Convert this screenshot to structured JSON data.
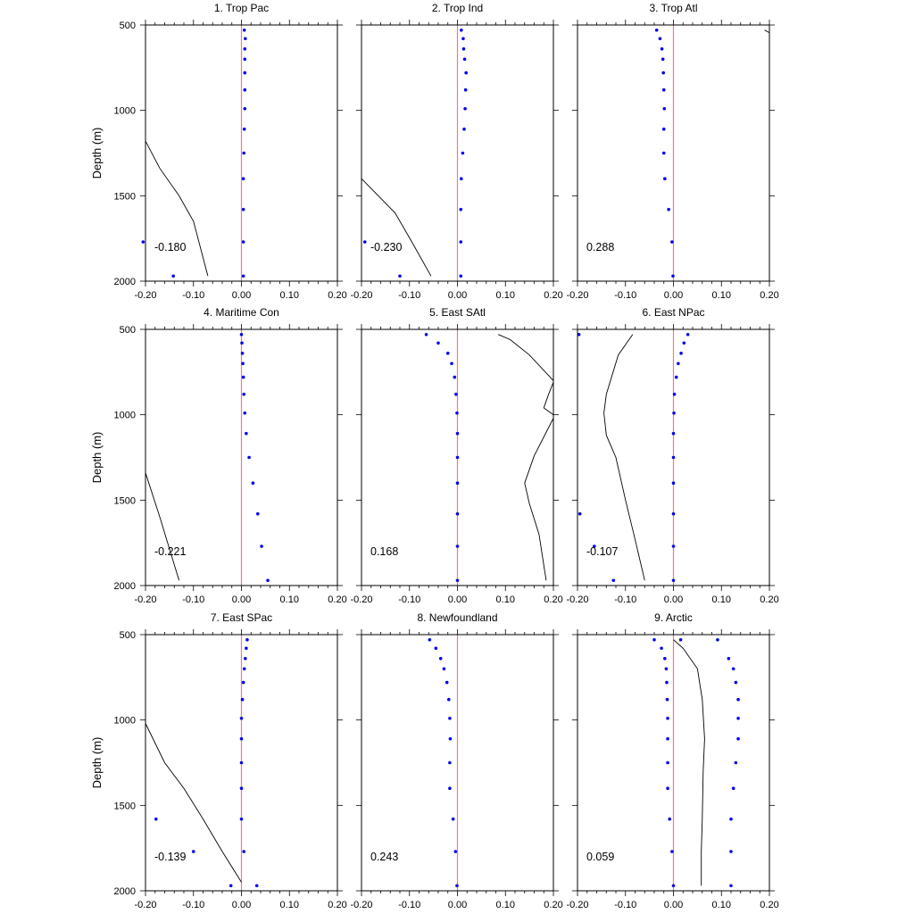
{
  "colors": {
    "zero_line": "#ff7777",
    "dots": "#0000ee",
    "line": "#000000",
    "axes": "#000000"
  },
  "chart_data": [
    {
      "type": "scatter",
      "title": "1. Trop Pac",
      "ylabel": "Depth (m)",
      "xlim": [
        -0.2,
        0.2
      ],
      "ylim": [
        500,
        2000
      ],
      "y_reversed": true,
      "xticks": [
        "-0.20",
        "-0.10",
        "0.00",
        "0.10",
        "0.20"
      ],
      "yticks": [
        "500",
        "1000",
        "1500",
        "2000"
      ],
      "annotation": "-0.180",
      "dots": [
        [
          0.006,
          530
        ],
        [
          0.008,
          580
        ],
        [
          0.007,
          640
        ],
        [
          0.007,
          700
        ],
        [
          0.007,
          780
        ],
        [
          0.007,
          880
        ],
        [
          0.007,
          990
        ],
        [
          0.006,
          1110
        ],
        [
          0.005,
          1250
        ],
        [
          0.004,
          1400
        ],
        [
          0.004,
          1580
        ],
        [
          0.004,
          1770
        ],
        [
          0.004,
          1970
        ],
        [
          -0.205,
          1770
        ],
        [
          -0.142,
          1970
        ]
      ],
      "line": [
        [
          -0.2,
          1180
        ],
        [
          -0.17,
          1340
        ],
        [
          -0.13,
          1500
        ],
        [
          -0.1,
          1650
        ],
        [
          -0.07,
          1970
        ]
      ]
    },
    {
      "type": "scatter",
      "title": "2. Trop Ind",
      "ylabel": "",
      "xlim": [
        -0.2,
        0.2
      ],
      "ylim": [
        500,
        2000
      ],
      "y_reversed": true,
      "xticks": [
        "-0.20",
        "-0.10",
        "0.00",
        "0.10",
        "0.20"
      ],
      "yticks": [],
      "annotation": "-0.230",
      "dots": [
        [
          0.008,
          530
        ],
        [
          0.012,
          580
        ],
        [
          0.013,
          640
        ],
        [
          0.015,
          700
        ],
        [
          0.018,
          780
        ],
        [
          0.017,
          880
        ],
        [
          0.016,
          990
        ],
        [
          0.014,
          1110
        ],
        [
          0.011,
          1250
        ],
        [
          0.008,
          1400
        ],
        [
          0.007,
          1580
        ],
        [
          0.007,
          1770
        ],
        [
          0.007,
          1970
        ],
        [
          -0.193,
          1770
        ],
        [
          -0.12,
          1970
        ]
      ],
      "line": [
        [
          -0.2,
          1400
        ],
        [
          -0.165,
          1500
        ],
        [
          -0.13,
          1600
        ],
        [
          -0.095,
          1770
        ],
        [
          -0.055,
          1970
        ]
      ]
    },
    {
      "type": "scatter",
      "title": "3. Trop Atl",
      "ylabel": "",
      "xlim": [
        -0.2,
        0.2
      ],
      "ylim": [
        500,
        2000
      ],
      "y_reversed": true,
      "xticks": [
        "-0.20",
        "-0.10",
        "0.00",
        "0.10",
        "0.20"
      ],
      "yticks": [],
      "annotation": "0.288",
      "dots": [
        [
          -0.035,
          530
        ],
        [
          -0.028,
          580
        ],
        [
          -0.024,
          640
        ],
        [
          -0.022,
          700
        ],
        [
          -0.021,
          780
        ],
        [
          -0.02,
          880
        ],
        [
          -0.019,
          990
        ],
        [
          -0.02,
          1110
        ],
        [
          -0.02,
          1250
        ],
        [
          -0.018,
          1400
        ],
        [
          -0.01,
          1580
        ],
        [
          -0.003,
          1770
        ],
        [
          -0.001,
          1970
        ]
      ],
      "line": [
        [
          0.19,
          530
        ],
        [
          0.2,
          545
        ]
      ]
    },
    {
      "type": "scatter",
      "title": "4. Maritime Con",
      "ylabel": "Depth (m)",
      "xlim": [
        -0.2,
        0.2
      ],
      "ylim": [
        500,
        2000
      ],
      "y_reversed": true,
      "xticks": [
        "-0.20",
        "-0.10",
        "0.00",
        "0.10",
        "0.20"
      ],
      "yticks": [
        "500",
        "1000",
        "1500",
        "2000"
      ],
      "annotation": "-0.221",
      "dots": [
        [
          0.0,
          530
        ],
        [
          0.001,
          580
        ],
        [
          0.002,
          640
        ],
        [
          0.003,
          700
        ],
        [
          0.004,
          780
        ],
        [
          0.005,
          880
        ],
        [
          0.007,
          990
        ],
        [
          0.01,
          1110
        ],
        [
          0.016,
          1250
        ],
        [
          0.024,
          1400
        ],
        [
          0.034,
          1580
        ],
        [
          0.042,
          1770
        ],
        [
          0.055,
          1970
        ]
      ],
      "line": [
        [
          -0.2,
          1340
        ],
        [
          -0.17,
          1600
        ],
        [
          -0.13,
          1970
        ]
      ]
    },
    {
      "type": "scatter",
      "title": "5. East SAtl",
      "ylabel": "",
      "xlim": [
        -0.2,
        0.2
      ],
      "ylim": [
        500,
        2000
      ],
      "y_reversed": true,
      "xticks": [
        "-0.20",
        "-0.10",
        "0.00",
        "0.10",
        "0.20"
      ],
      "yticks": [],
      "annotation": "0.168",
      "dots": [
        [
          -0.065,
          530
        ],
        [
          -0.04,
          580
        ],
        [
          -0.02,
          640
        ],
        [
          -0.012,
          700
        ],
        [
          -0.006,
          780
        ],
        [
          -0.003,
          880
        ],
        [
          -0.001,
          990
        ],
        [
          0.0,
          1110
        ],
        [
          0.0,
          1250
        ],
        [
          0.0,
          1400
        ],
        [
          0.0,
          1580
        ],
        [
          0.0,
          1770
        ],
        [
          0.0,
          1970
        ]
      ],
      "line": [
        [
          0.085,
          530
        ],
        [
          0.11,
          560
        ],
        [
          0.15,
          650
        ],
        [
          0.2,
          800
        ],
        [
          0.2,
          810
        ],
        [
          0.19,
          880
        ],
        [
          0.18,
          960
        ],
        [
          0.2,
          1000
        ],
        [
          0.2,
          1020
        ],
        [
          0.16,
          1240
        ],
        [
          0.14,
          1400
        ],
        [
          0.15,
          1520
        ],
        [
          0.17,
          1700
        ],
        [
          0.185,
          1970
        ]
      ]
    },
    {
      "type": "scatter",
      "title": "6. East NPac",
      "ylabel": "",
      "xlim": [
        -0.2,
        0.2
      ],
      "ylim": [
        500,
        2000
      ],
      "y_reversed": true,
      "xticks": [
        "-0.20",
        "-0.10",
        "0.00",
        "0.10",
        "0.20"
      ],
      "yticks": [],
      "annotation": "-0.107",
      "dots": [
        [
          0.03,
          530
        ],
        [
          0.022,
          580
        ],
        [
          0.016,
          640
        ],
        [
          0.01,
          700
        ],
        [
          0.006,
          780
        ],
        [
          0.002,
          880
        ],
        [
          0.001,
          990
        ],
        [
          0.0,
          1110
        ],
        [
          0.0,
          1250
        ],
        [
          0.0,
          1400
        ],
        [
          0.0,
          1580
        ],
        [
          0.0,
          1770
        ],
        [
          0.0,
          1970
        ],
        [
          -0.197,
          530
        ],
        [
          -0.195,
          1580
        ],
        [
          -0.165,
          1770
        ],
        [
          -0.125,
          1970
        ]
      ],
      "line": [
        [
          -0.085,
          530
        ],
        [
          -0.115,
          650
        ],
        [
          -0.14,
          880
        ],
        [
          -0.145,
          990
        ],
        [
          -0.14,
          1120
        ],
        [
          -0.12,
          1250
        ],
        [
          -0.1,
          1500
        ],
        [
          -0.08,
          1730
        ],
        [
          -0.06,
          1970
        ]
      ]
    },
    {
      "type": "scatter",
      "title": "7. East SPac",
      "ylabel": "Depth (m)",
      "xlim": [
        -0.2,
        0.2
      ],
      "ylim": [
        500,
        2000
      ],
      "y_reversed": true,
      "xticks": [
        "-0.20",
        "-0.10",
        "0.00",
        "0.10",
        "0.20"
      ],
      "yticks": [
        "500",
        "1000",
        "1500",
        "2000"
      ],
      "annotation": "-0.139",
      "dots": [
        [
          0.012,
          530
        ],
        [
          0.01,
          580
        ],
        [
          0.008,
          640
        ],
        [
          0.006,
          700
        ],
        [
          0.004,
          780
        ],
        [
          0.002,
          880
        ],
        [
          0.0,
          990
        ],
        [
          0.0,
          1110
        ],
        [
          0.0,
          1250
        ],
        [
          0.0,
          1400
        ],
        [
          0.0,
          1580
        ],
        [
          0.005,
          1770
        ],
        [
          -0.022,
          1970
        ],
        [
          0.032,
          1970
        ],
        [
          -0.178,
          1580
        ],
        [
          -0.1,
          1770
        ]
      ],
      "line": [
        [
          -0.2,
          1020
        ],
        [
          -0.16,
          1250
        ],
        [
          -0.12,
          1400
        ],
        [
          -0.08,
          1580
        ],
        [
          -0.04,
          1770
        ],
        [
          0.0,
          1950
        ]
      ]
    },
    {
      "type": "scatter",
      "title": "8. Newfoundland",
      "ylabel": "",
      "xlim": [
        -0.2,
        0.2
      ],
      "ylim": [
        500,
        2000
      ],
      "y_reversed": true,
      "xticks": [
        "-0.20",
        "-0.10",
        "0.00",
        "0.10",
        "0.20"
      ],
      "yticks": [],
      "annotation": "0.243",
      "dots": [
        [
          -0.058,
          530
        ],
        [
          -0.045,
          580
        ],
        [
          -0.035,
          640
        ],
        [
          -0.028,
          700
        ],
        [
          -0.022,
          780
        ],
        [
          -0.018,
          880
        ],
        [
          -0.016,
          990
        ],
        [
          -0.015,
          1110
        ],
        [
          -0.016,
          1250
        ],
        [
          -0.016,
          1400
        ],
        [
          -0.009,
          1580
        ],
        [
          -0.004,
          1770
        ],
        [
          -0.001,
          1970
        ]
      ],
      "line": []
    },
    {
      "type": "scatter",
      "title": "9. Arctic",
      "ylabel": "",
      "xlim": [
        -0.2,
        0.2
      ],
      "ylim": [
        500,
        2000
      ],
      "y_reversed": true,
      "xticks": [
        "-0.20",
        "-0.10",
        "0.00",
        "0.10",
        "0.20"
      ],
      "yticks": [],
      "annotation": "0.059",
      "dots": [
        [
          -0.04,
          530
        ],
        [
          -0.025,
          580
        ],
        [
          -0.018,
          640
        ],
        [
          -0.015,
          700
        ],
        [
          -0.014,
          780
        ],
        [
          -0.013,
          880
        ],
        [
          -0.012,
          990
        ],
        [
          -0.012,
          1110
        ],
        [
          -0.012,
          1250
        ],
        [
          -0.012,
          1400
        ],
        [
          -0.008,
          1580
        ],
        [
          -0.003,
          1770
        ],
        [
          0.0,
          1970
        ],
        [
          0.015,
          530
        ],
        [
          0.092,
          530
        ],
        [
          0.115,
          640
        ],
        [
          0.125,
          700
        ],
        [
          0.13,
          780
        ],
        [
          0.135,
          880
        ],
        [
          0.135,
          990
        ],
        [
          0.135,
          1110
        ],
        [
          0.13,
          1250
        ],
        [
          0.125,
          1400
        ],
        [
          0.12,
          1580
        ],
        [
          0.12,
          1770
        ],
        [
          0.12,
          1970
        ]
      ],
      "line": [
        [
          0.0,
          530
        ],
        [
          0.02,
          580
        ],
        [
          0.05,
          700
        ],
        [
          0.06,
          880
        ],
        [
          0.065,
          1110
        ],
        [
          0.062,
          1300
        ],
        [
          0.06,
          1580
        ],
        [
          0.058,
          1770
        ],
        [
          0.058,
          1970
        ]
      ]
    }
  ]
}
